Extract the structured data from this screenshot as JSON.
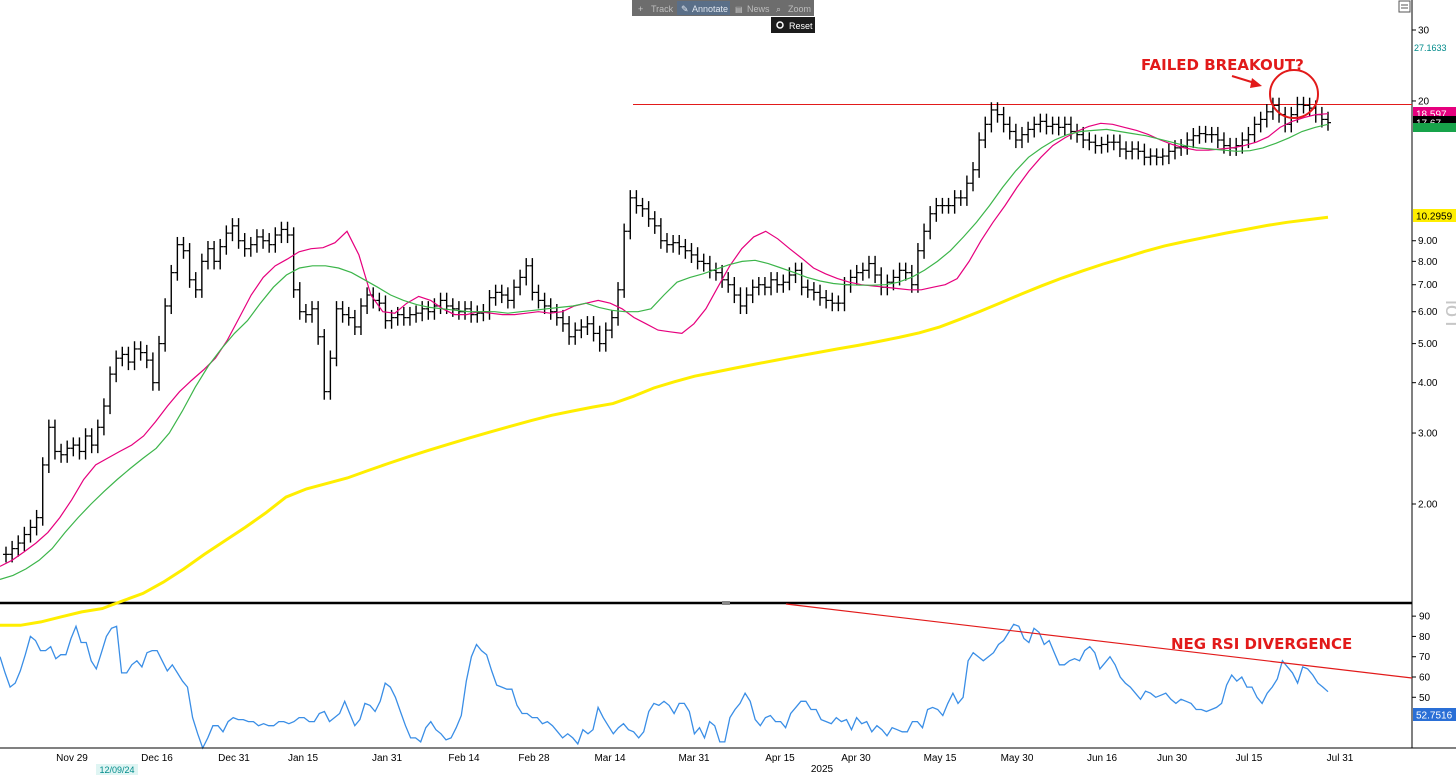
{
  "toolbar": {
    "items": [
      {
        "icon": "plus-icon",
        "label": "Track"
      },
      {
        "icon": "pencil-icon",
        "label": "Annotate"
      },
      {
        "icon": "news-icon",
        "label": "News"
      },
      {
        "icon": "magnifier-icon",
        "label": "Zoom"
      }
    ],
    "reset_label": "Reset"
  },
  "chart_data": {
    "type": "line",
    "upper_panel": {
      "price_scale": "log",
      "y_ticks": [
        "30",
        "20",
        "9.00",
        "8.00",
        "7.00",
        "6.00",
        "5.00",
        "4.00",
        "3.00",
        "2.00"
      ],
      "price_tags": [
        {
          "value": "27.1633",
          "color": "#008b8b"
        },
        {
          "value": "18.597",
          "color": "#e6007e"
        },
        {
          "value": "17.67",
          "color": "#000000"
        },
        {
          "value": "10.2959",
          "color": "#ffee00"
        }
      ],
      "watermark": "loT",
      "annotation": "FAILED BREAKOUT?",
      "resistance_level": 19.6,
      "series": [
        {
          "style": "ohlc-bars",
          "color": "#000000",
          "close": [
            1.5,
            1.55,
            1.6,
            1.68,
            1.75,
            1.85,
            2.5,
            3.1,
            2.7,
            2.65,
            2.75,
            2.8,
            2.7,
            2.95,
            2.8,
            3.1,
            3.5,
            4.2,
            4.6,
            4.7,
            4.5,
            4.85,
            4.75,
            4.55,
            4.0,
            5.0,
            6.2,
            7.5,
            8.8,
            8.5,
            7.2,
            6.8,
            8.0,
            8.6,
            8.0,
            8.7,
            9.4,
            9.8,
            9.0,
            8.6,
            8.8,
            9.2,
            9.0,
            8.8,
            9.3,
            9.6,
            9.3,
            6.8,
            6.0,
            5.9,
            6.1,
            5.2,
            3.8,
            4.6,
            6.1,
            5.9,
            5.8,
            5.5,
            6.2,
            6.6,
            6.4,
            6.3,
            5.7,
            5.8,
            5.9,
            5.8,
            5.9,
            5.95,
            6.1,
            6.0,
            6.2,
            6.4,
            6.2,
            6.1,
            6.0,
            6.1,
            5.9,
            5.95,
            6.0,
            6.5,
            6.7,
            6.6,
            6.4,
            6.9,
            7.3,
            7.8,
            6.7,
            6.4,
            6.2,
            6.0,
            5.8,
            5.6,
            5.2,
            5.4,
            5.5,
            5.6,
            5.3,
            5.0,
            5.4,
            5.8,
            6.8,
            9.5,
            11.5,
            11.0,
            10.8,
            10.2,
            9.8,
            9.0,
            8.8,
            8.9,
            8.7,
            8.5,
            8.3,
            8.0,
            7.9,
            7.6,
            7.5,
            7.2,
            7.0,
            6.6,
            6.2,
            6.6,
            6.9,
            7.0,
            6.9,
            7.2,
            7.0,
            7.1,
            7.4,
            7.6,
            6.9,
            6.8,
            6.7,
            6.5,
            6.4,
            6.3,
            6.3,
            7.0,
            7.3,
            7.5,
            7.6,
            7.9,
            7.4,
            6.9,
            7.1,
            7.3,
            7.6,
            7.5,
            7.0,
            8.5,
            9.5,
            10.5,
            11.0,
            11.0,
            11.0,
            11.5,
            11.5,
            12.5,
            13.5,
            16.0,
            17.5,
            19.0,
            18.5,
            17.5,
            16.8,
            16.0,
            16.5,
            17.0,
            17.5,
            17.8,
            17.3,
            17.5,
            17.2,
            17.5,
            16.8,
            16.5,
            16.0,
            15.8,
            15.5,
            15.6,
            15.8,
            15.8,
            15.2,
            15.0,
            15.2,
            15.0,
            14.5,
            14.6,
            14.5,
            14.6,
            15.0,
            15.3,
            15.4,
            16.0,
            16.4,
            16.6,
            16.5,
            16.5,
            16.0,
            15.5,
            15.3,
            15.5,
            16.0,
            16.5,
            17.5,
            18.0,
            18.8,
            19.5,
            18.5,
            17.5,
            18.5,
            19.6,
            19.5,
            19.2,
            18.5,
            18.0,
            17.67
          ]
        },
        {
          "name": "",
          "color": "#e6007e",
          "last": 18.597,
          "values": [
            1.4,
            1.45,
            1.52,
            1.6,
            1.7,
            1.85,
            2.05,
            2.3,
            2.5,
            2.6,
            2.7,
            2.8,
            2.95,
            3.2,
            3.5,
            3.8,
            4.05,
            4.3,
            4.6,
            5.1,
            5.8,
            6.6,
            7.3,
            7.8,
            8.1,
            8.45,
            8.6,
            8.65,
            8.9,
            9.5,
            8.3,
            6.6,
            6.0,
            5.95,
            6.3,
            6.55,
            6.4,
            6.1,
            5.9,
            5.9,
            6.0,
            5.95,
            5.9,
            5.9,
            5.95,
            6.0,
            5.95,
            6.0,
            6.2,
            6.3,
            6.4,
            6.3,
            6.1,
            5.8,
            5.6,
            5.4,
            5.35,
            5.3,
            5.6,
            6.1,
            6.9,
            7.8,
            8.6,
            9.2,
            9.5,
            9.1,
            8.6,
            8.15,
            7.7,
            7.45,
            7.25,
            7.1,
            7.0,
            6.95,
            6.9,
            6.85,
            6.8,
            6.8,
            6.9,
            7.0,
            7.25,
            8.0,
            9.0,
            10.0,
            11.0,
            12.2,
            13.4,
            14.5,
            15.5,
            16.2,
            16.8,
            17.3,
            17.6,
            17.5,
            17.2,
            16.9,
            16.5,
            16.0,
            15.6,
            15.3,
            15.1,
            15.1,
            15.2,
            15.3,
            15.5,
            15.8,
            16.3,
            17.2,
            17.8,
            18.2,
            18.5,
            18.597
          ]
        },
        {
          "name": "",
          "color": "#3cb54a",
          "last": 17.5,
          "values": [
            1.3,
            1.33,
            1.38,
            1.45,
            1.55,
            1.7,
            1.85,
            2.0,
            2.15,
            2.3,
            2.45,
            2.6,
            2.75,
            3.0,
            3.4,
            3.9,
            4.4,
            4.85,
            5.3,
            5.7,
            6.3,
            6.9,
            7.4,
            7.7,
            7.8,
            7.8,
            7.7,
            7.5,
            7.2,
            6.9,
            6.6,
            6.4,
            6.25,
            6.15,
            6.1,
            6.05,
            6.0,
            6.0,
            6.0,
            5.95,
            6.0,
            6.05,
            6.1,
            6.15,
            6.2,
            6.3,
            6.15,
            6.05,
            6.0,
            6.0,
            6.1,
            6.6,
            7.1,
            7.3,
            7.45,
            7.65,
            7.85,
            8.0,
            8.05,
            7.9,
            7.7,
            7.5,
            7.3,
            7.15,
            7.05,
            7.0,
            6.98,
            6.98,
            7.0,
            7.1,
            7.3,
            7.6,
            8.0,
            8.5,
            9.2,
            10.0,
            11.0,
            12.2,
            13.4,
            14.5,
            15.3,
            16.0,
            16.5,
            16.8,
            16.9,
            17.0,
            16.8,
            16.6,
            16.4,
            16.1,
            15.8,
            15.5,
            15.3,
            15.2,
            15.1,
            15.0,
            15.05,
            15.3,
            15.7,
            16.2,
            16.8,
            17.2,
            17.5
          ]
        },
        {
          "name": "",
          "color": "#ffee00",
          "last": 10.2959,
          "values": [
            1.0,
            1.0,
            1.02,
            1.05,
            1.08,
            1.1,
            1.15,
            1.2,
            1.28,
            1.38,
            1.5,
            1.62,
            1.75,
            1.9,
            2.08,
            2.18,
            2.25,
            2.32,
            2.42,
            2.52,
            2.62,
            2.72,
            2.82,
            2.92,
            3.02,
            3.12,
            3.22,
            3.32,
            3.4,
            3.48,
            3.55,
            3.7,
            3.88,
            4.02,
            4.15,
            4.25,
            4.35,
            4.45,
            4.55,
            4.65,
            4.75,
            4.85,
            4.95,
            5.06,
            5.18,
            5.32,
            5.5,
            5.75,
            6.02,
            6.32,
            6.64,
            6.96,
            7.28,
            7.58,
            7.88,
            8.16,
            8.46,
            8.74,
            8.96,
            9.18,
            9.4,
            9.6,
            9.82,
            10.0,
            10.15,
            10.2959
          ]
        }
      ]
    },
    "lower_panel": {
      "y_ticks": [
        "90",
        "80",
        "70",
        "60",
        "50"
      ],
      "ylim": [
        25,
        95
      ],
      "last_value": "52.7516",
      "annotation": "NEG RSI DIVERGENCE",
      "series": [
        {
          "name": "",
          "color": "#3a8ee6",
          "values": [
            70,
            62,
            55,
            57,
            63,
            71,
            80,
            78,
            73,
            73,
            75,
            69,
            71,
            71,
            79,
            85,
            77,
            77,
            68,
            64,
            72,
            80,
            84,
            85,
            62,
            62,
            66,
            68,
            65,
            72,
            73,
            73,
            68,
            63,
            66,
            62,
            58,
            55,
            40,
            32,
            25,
            30,
            36,
            36,
            33,
            38,
            40,
            39,
            39,
            38,
            38,
            36,
            37,
            36,
            36,
            38,
            38,
            37,
            38,
            40,
            40,
            38,
            38,
            42,
            43,
            38,
            40,
            42,
            48,
            42,
            36,
            39,
            47,
            46,
            43,
            48,
            57,
            55,
            50,
            43,
            36,
            30,
            30,
            28,
            35,
            38,
            34,
            32,
            29,
            30,
            35,
            41,
            58,
            70,
            76,
            73,
            71,
            63,
            56,
            55,
            54,
            54,
            46,
            42,
            42,
            40,
            40,
            37,
            38,
            36,
            33,
            30,
            32,
            30,
            27,
            34,
            32,
            34,
            45,
            40,
            36,
            32,
            35,
            37,
            34,
            33,
            30,
            33,
            43,
            47,
            46,
            48,
            46,
            42,
            47,
            47,
            43,
            32,
            35,
            30,
            38,
            36,
            28,
            28,
            40,
            44,
            47,
            52,
            48,
            39,
            36,
            40,
            41,
            38,
            38,
            35,
            42,
            45,
            48,
            48,
            44,
            44,
            39,
            38,
            37,
            40,
            38,
            39,
            34,
            40,
            37,
            38,
            33,
            36,
            34,
            31,
            35,
            34,
            33,
            33,
            38,
            38,
            35,
            44,
            45,
            44,
            41,
            47,
            52,
            47,
            50,
            68,
            72,
            70,
            68,
            70,
            72,
            76,
            78,
            82,
            86,
            85,
            79,
            77,
            84,
            82,
            76,
            78,
            72,
            66,
            66,
            68,
            69,
            68,
            73,
            75,
            72,
            64,
            67,
            70,
            66,
            60,
            57,
            55,
            52,
            49,
            53,
            52,
            50,
            51,
            52,
            49,
            47,
            49,
            48,
            47,
            44,
            44,
            43,
            44,
            45,
            47,
            56,
            61,
            58,
            60,
            55,
            55,
            50,
            47,
            52,
            55,
            59,
            68,
            65,
            62,
            57,
            65,
            64,
            61,
            57,
            55,
            52.7516
          ]
        }
      ],
      "divergence_line": {
        "from": 86,
        "to": 60
      }
    },
    "x_labels": [
      "Nov 29",
      "Dec 16",
      "Dec 31",
      "Jan 15",
      "Jan 31",
      "Feb 14",
      "Feb 28",
      "Mar 14",
      "Mar 31",
      "Apr 15",
      "Apr 30",
      "May 15",
      "May 30",
      "Jun 16",
      "Jun 30",
      "Jul 15",
      "Jul 31"
    ],
    "x_year_label": "2025",
    "cursor_date": "12/09/24"
  }
}
